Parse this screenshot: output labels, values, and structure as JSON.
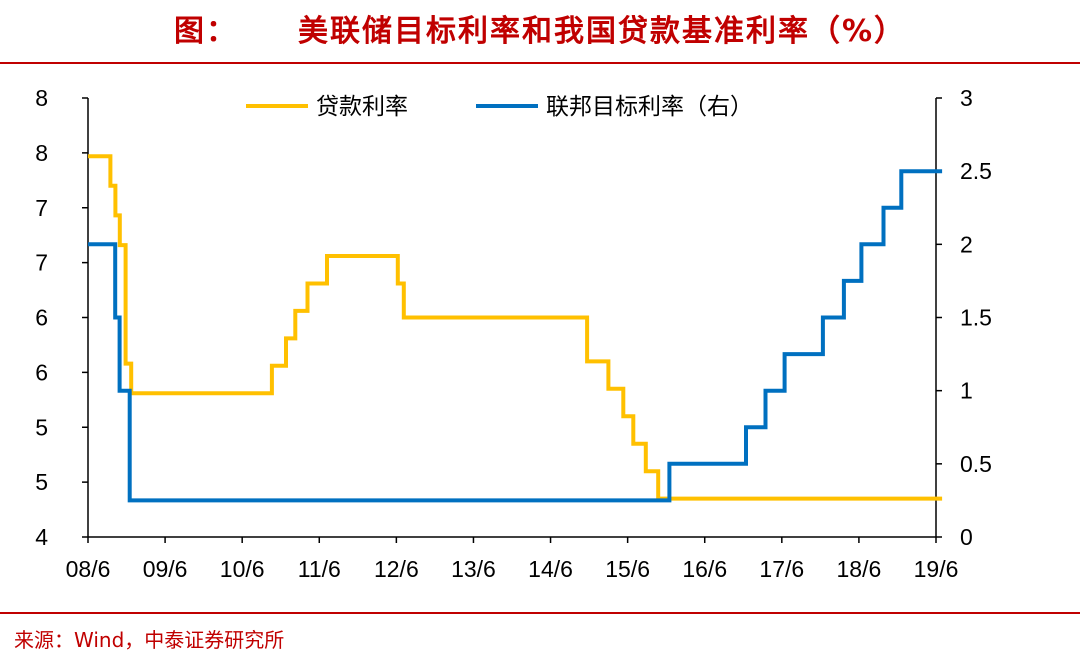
{
  "title": {
    "prefix": "图：",
    "text": "美联储目标利率和我国贷款基准利率（%）"
  },
  "source": "来源：Wind，中泰证券研究所",
  "colors": {
    "accent": "#c00000",
    "loan": "#FFC000",
    "fed": "#0070C0",
    "axis": "#000000"
  },
  "chart_data": {
    "type": "line",
    "x_ticks": [
      "08/6",
      "09/6",
      "10/6",
      "11/6",
      "12/6",
      "13/6",
      "14/6",
      "15/6",
      "16/6",
      "17/6",
      "18/6",
      "19/6"
    ],
    "x_range": [
      "2008-06",
      "2019-06"
    ],
    "y_left": {
      "range": [
        4,
        8
      ],
      "tick_labels": [
        "4",
        "5",
        "5",
        "6",
        "6",
        "7",
        "7",
        "8",
        "8"
      ]
    },
    "y_right": {
      "range": [
        0,
        3
      ],
      "tick_labels": [
        "0",
        "0.5",
        "1",
        "1.5",
        "2",
        "2.5",
        "3"
      ]
    },
    "legend_position": "top",
    "series": [
      {
        "name": "贷款利率",
        "axis": "left",
        "color": "#FFC000",
        "points": [
          [
            "2008-06-01",
            7.47
          ],
          [
            "2008-09-16",
            7.2
          ],
          [
            "2008-10-09",
            6.93
          ],
          [
            "2008-10-30",
            6.66
          ],
          [
            "2008-11-27",
            5.58
          ],
          [
            "2008-12-23",
            5.31
          ],
          [
            "2010-10-20",
            5.56
          ],
          [
            "2010-12-26",
            5.81
          ],
          [
            "2011-02-09",
            6.06
          ],
          [
            "2011-04-06",
            6.31
          ],
          [
            "2011-07-07",
            6.56
          ],
          [
            "2012-06-08",
            6.31
          ],
          [
            "2012-07-06",
            6.0
          ],
          [
            "2014-11-22",
            5.6
          ],
          [
            "2015-03-01",
            5.35
          ],
          [
            "2015-05-11",
            5.1
          ],
          [
            "2015-06-28",
            4.85
          ],
          [
            "2015-08-26",
            4.6
          ],
          [
            "2015-10-24",
            4.35
          ],
          [
            "2019-06-30",
            4.35
          ]
        ]
      },
      {
        "name": "联邦目标利率（右）",
        "axis": "right",
        "color": "#0070C0",
        "points": [
          [
            "2008-06-01",
            2.0
          ],
          [
            "2008-10-08",
            1.5
          ],
          [
            "2008-10-29",
            1.0
          ],
          [
            "2008-12-16",
            0.25
          ],
          [
            "2015-12-16",
            0.5
          ],
          [
            "2016-12-14",
            0.75
          ],
          [
            "2017-03-15",
            1.0
          ],
          [
            "2017-06-14",
            1.25
          ],
          [
            "2017-12-13",
            1.5
          ],
          [
            "2018-03-21",
            1.75
          ],
          [
            "2018-06-13",
            2.0
          ],
          [
            "2018-09-26",
            2.25
          ],
          [
            "2018-12-19",
            2.5
          ],
          [
            "2019-06-30",
            2.5
          ]
        ]
      }
    ]
  }
}
